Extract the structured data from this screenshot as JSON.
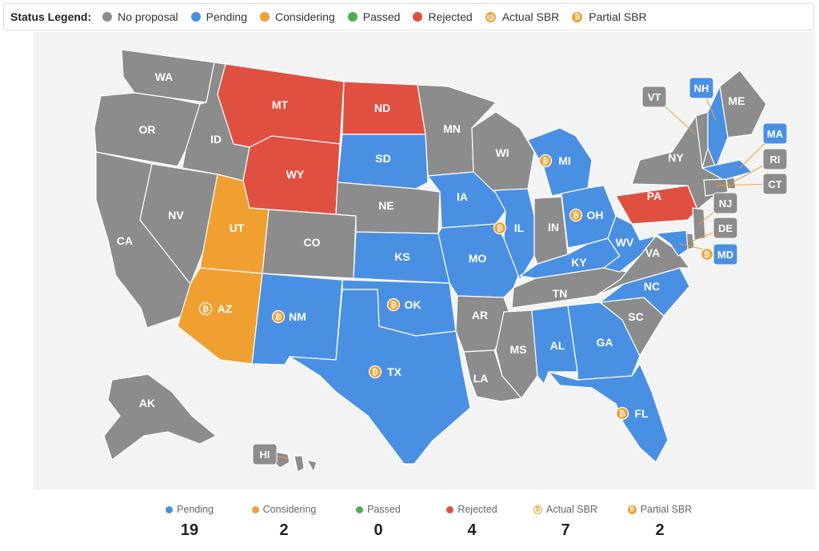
{
  "legend": {
    "title": "Status Legend:",
    "items": [
      {
        "label": "No proposal",
        "kind": "dot",
        "color": "#8c8c8c"
      },
      {
        "label": "Pending",
        "kind": "dot",
        "color": "#4a90e2"
      },
      {
        "label": "Considering",
        "kind": "dot",
        "color": "#f0a030"
      },
      {
        "label": "Passed",
        "kind": "dot",
        "color": "#4caf50"
      },
      {
        "label": "Rejected",
        "kind": "dot",
        "color": "#e05040"
      },
      {
        "label": "Actual SBR",
        "kind": "btc-outline",
        "color": "#f0a030"
      },
      {
        "label": "Partial SBR",
        "kind": "btc-filled",
        "color": "#f0a030"
      }
    ]
  },
  "colors": {
    "none": "#8c8c8c",
    "pending": "#4a90e2",
    "considering": "#f0a030",
    "passed": "#4caf50",
    "rejected": "#e05040",
    "btc": "#f0a030",
    "background": "#f3f3f3"
  },
  "states": [
    {
      "code": "WA",
      "status": "none"
    },
    {
      "code": "OR",
      "status": "none"
    },
    {
      "code": "CA",
      "status": "none"
    },
    {
      "code": "NV",
      "status": "none"
    },
    {
      "code": "ID",
      "status": "none"
    },
    {
      "code": "MT",
      "status": "rejected"
    },
    {
      "code": "WY",
      "status": "rejected"
    },
    {
      "code": "UT",
      "status": "considering"
    },
    {
      "code": "AZ",
      "status": "considering",
      "btc": true
    },
    {
      "code": "CO",
      "status": "none"
    },
    {
      "code": "NM",
      "status": "pending",
      "btc": true
    },
    {
      "code": "ND",
      "status": "rejected"
    },
    {
      "code": "SD",
      "status": "pending"
    },
    {
      "code": "NE",
      "status": "none"
    },
    {
      "code": "KS",
      "status": "pending"
    },
    {
      "code": "OK",
      "status": "pending",
      "btc": true
    },
    {
      "code": "TX",
      "status": "pending",
      "btc": true
    },
    {
      "code": "MN",
      "status": "none"
    },
    {
      "code": "IA",
      "status": "pending"
    },
    {
      "code": "MO",
      "status": "pending"
    },
    {
      "code": "AR",
      "status": "none"
    },
    {
      "code": "LA",
      "status": "none"
    },
    {
      "code": "WI",
      "status": "none"
    },
    {
      "code": "IL",
      "status": "pending",
      "btc": true
    },
    {
      "code": "MI",
      "status": "pending",
      "btc": true
    },
    {
      "code": "IN",
      "status": "none"
    },
    {
      "code": "OH",
      "status": "pending",
      "btc": true
    },
    {
      "code": "KY",
      "status": "pending"
    },
    {
      "code": "TN",
      "status": "none"
    },
    {
      "code": "MS",
      "status": "none"
    },
    {
      "code": "AL",
      "status": "pending"
    },
    {
      "code": "GA",
      "status": "pending"
    },
    {
      "code": "FL",
      "status": "pending",
      "btc": true
    },
    {
      "code": "SC",
      "status": "none"
    },
    {
      "code": "NC",
      "status": "pending"
    },
    {
      "code": "VA",
      "status": "none"
    },
    {
      "code": "WV",
      "status": "pending"
    },
    {
      "code": "PA",
      "status": "rejected"
    },
    {
      "code": "NY",
      "status": "none"
    },
    {
      "code": "ME",
      "status": "none"
    },
    {
      "code": "AK",
      "status": "none"
    },
    {
      "code": "HI",
      "status": "none"
    },
    {
      "code": "VT",
      "status": "none"
    },
    {
      "code": "NH",
      "status": "pending"
    },
    {
      "code": "MA",
      "status": "pending"
    },
    {
      "code": "RI",
      "status": "none"
    },
    {
      "code": "CT",
      "status": "none"
    },
    {
      "code": "NJ",
      "status": "none"
    },
    {
      "code": "DE",
      "status": "none"
    },
    {
      "code": "MD",
      "status": "pending",
      "btc": true
    }
  ],
  "stats": [
    {
      "label": "Pending",
      "value": "19",
      "kind": "dot",
      "color": "#4a90e2"
    },
    {
      "label": "Considering",
      "value": "2",
      "kind": "dot",
      "color": "#f0a030"
    },
    {
      "label": "Passed",
      "value": "0",
      "kind": "dot",
      "color": "#4caf50"
    },
    {
      "label": "Rejected",
      "value": "4",
      "kind": "dot",
      "color": "#e05040"
    },
    {
      "label": "Actual SBR",
      "value": "7",
      "kind": "btc-outline",
      "color": "#f0a030"
    },
    {
      "label": "Partial SBR",
      "value": "2",
      "kind": "btc-filled",
      "color": "#f0a030"
    }
  ]
}
